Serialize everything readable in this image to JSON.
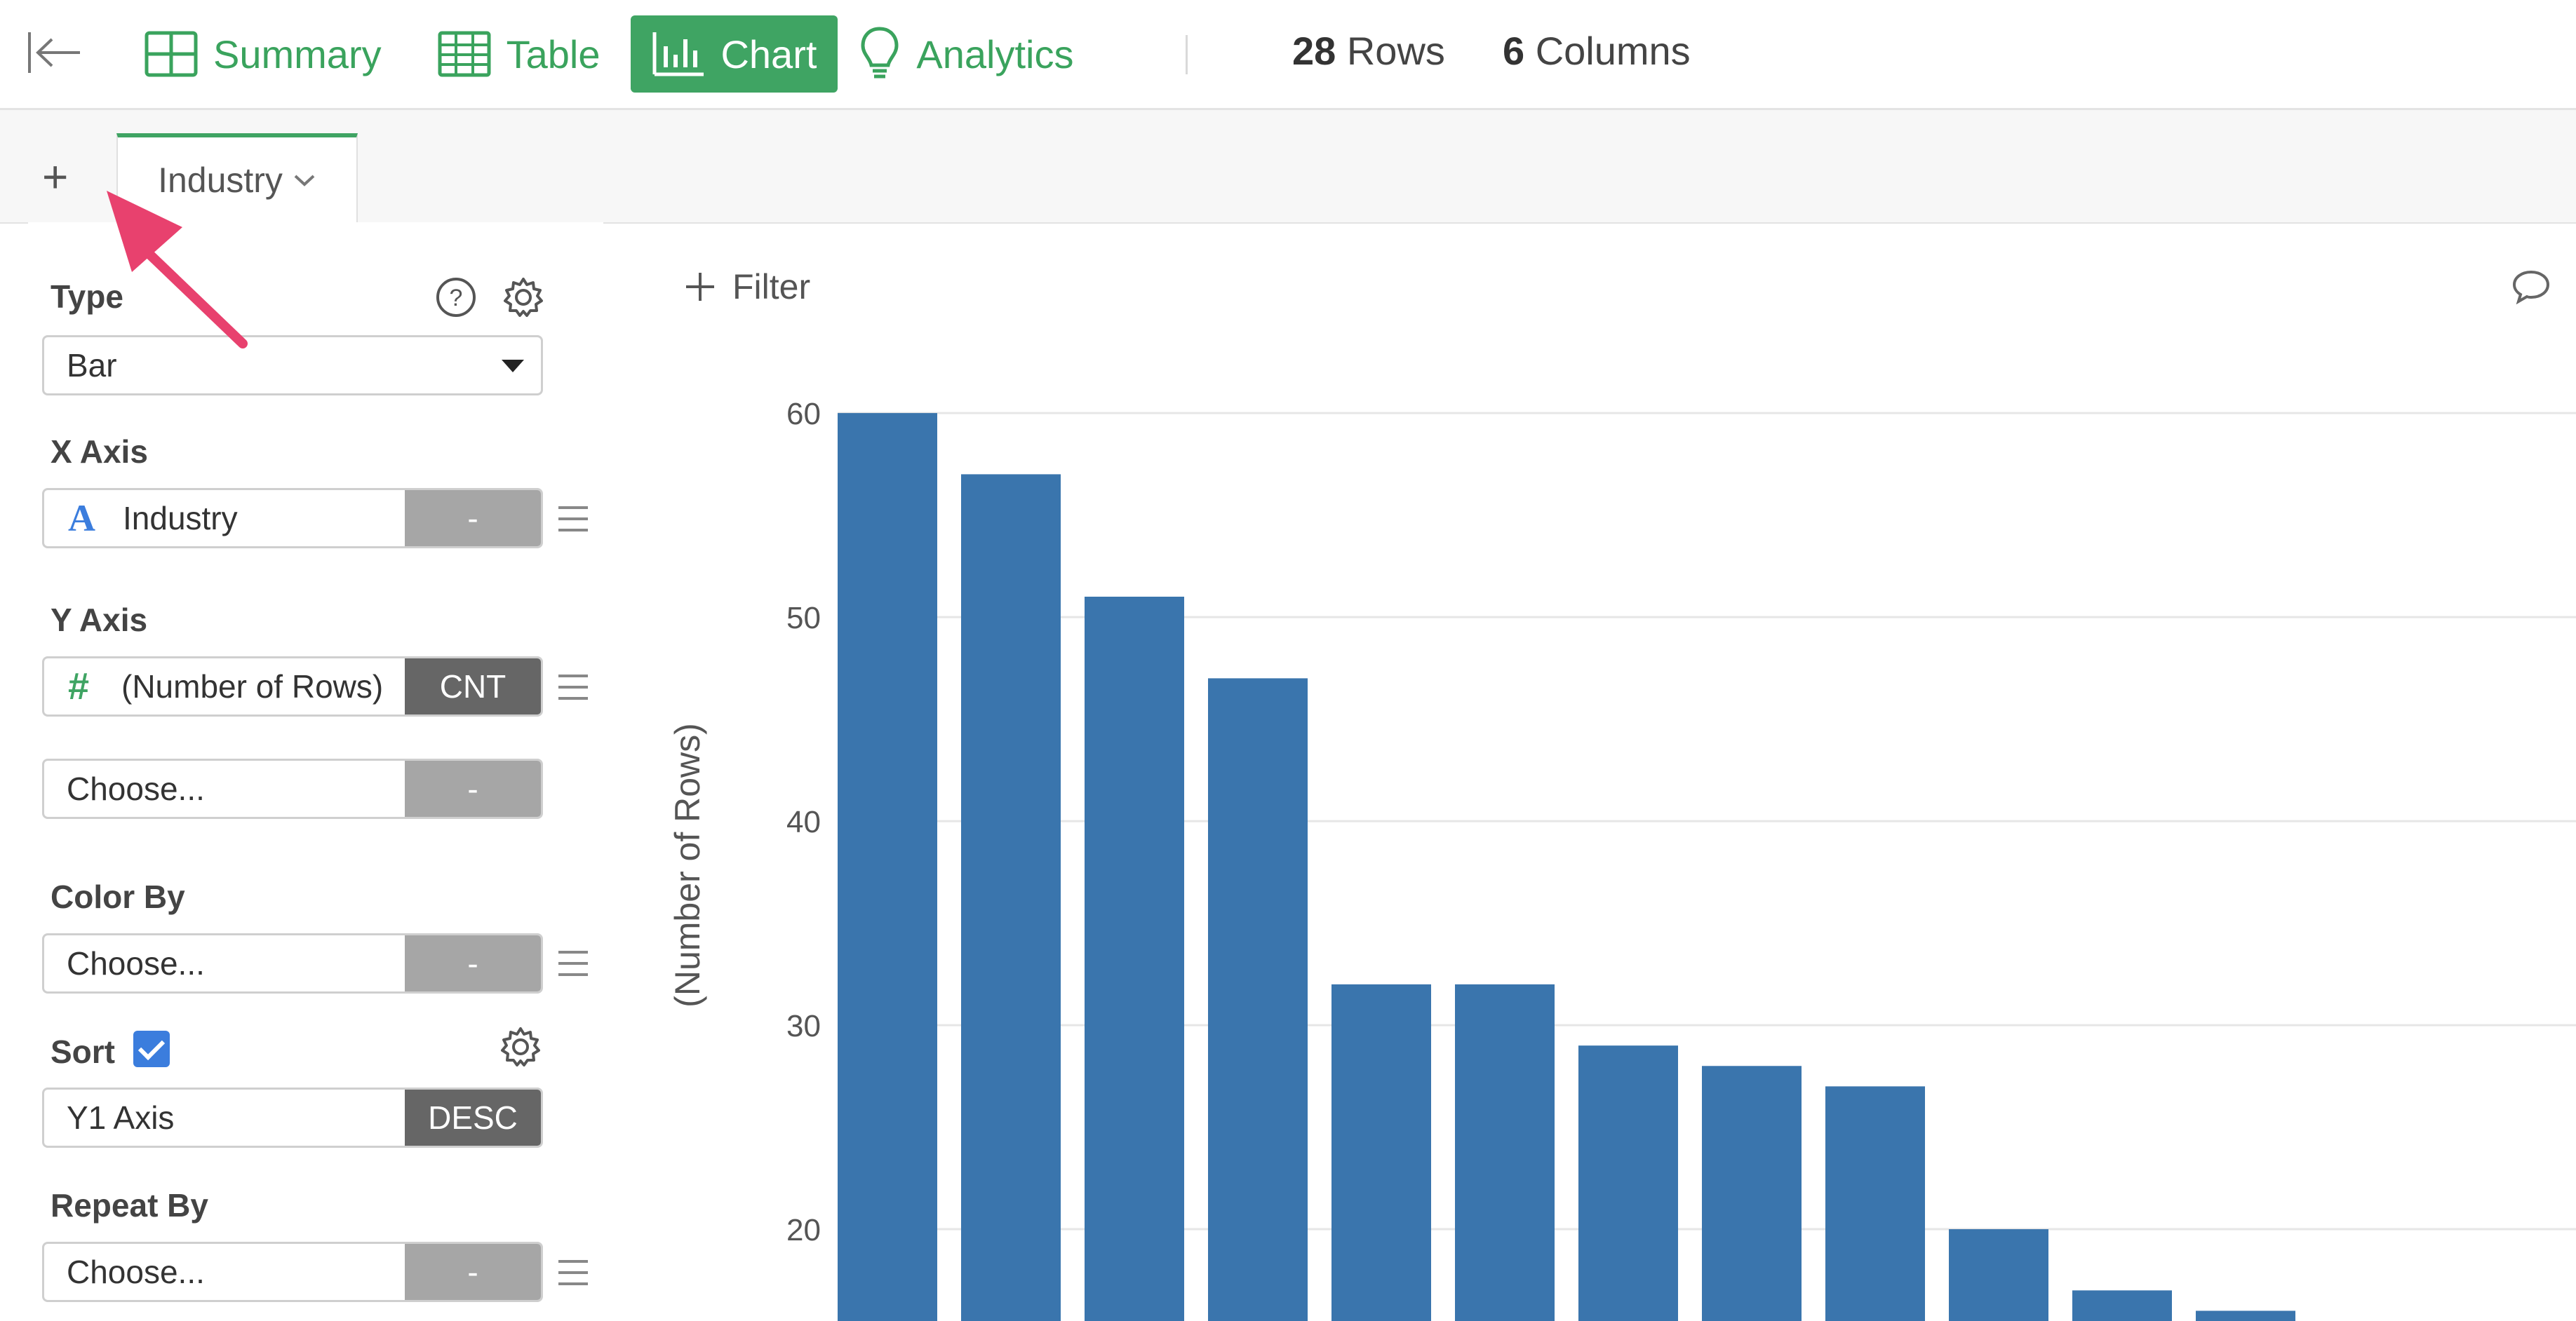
{
  "toolbar": {
    "items": [
      {
        "label": "Summary",
        "icon": "summary-grid-icon",
        "active": false
      },
      {
        "label": "Table",
        "icon": "table-icon",
        "active": false
      },
      {
        "label": "Chart",
        "icon": "bar-chart-icon",
        "active": true
      },
      {
        "label": "Analytics",
        "icon": "lightbulb-icon",
        "active": false
      }
    ],
    "rows_count": "28",
    "rows_label": "Rows",
    "columns_count": "6",
    "columns_label": "Columns"
  },
  "tabs": {
    "add_label": "+",
    "active_tab": "Industry"
  },
  "panel": {
    "type_label": "Type",
    "type_value": "Bar",
    "x_axis_label": "X Axis",
    "x_axis_field": "Industry",
    "x_axis_type_glyph": "A",
    "x_axis_agg": "-",
    "y_axis_label": "Y Axis",
    "y_axis_field": "(Number of Rows)",
    "y_axis_type_glyph": "#",
    "y_axis_agg": "CNT",
    "y2_field": "Choose...",
    "y2_agg": "-",
    "color_by_label": "Color By",
    "color_by_field": "Choose...",
    "color_by_agg": "-",
    "sort_label": "Sort",
    "sort_checked": true,
    "sort_field": "Y1 Axis",
    "sort_order": "DESC",
    "repeat_by_label": "Repeat By",
    "repeat_by_field": "Choose...",
    "repeat_by_agg": "-"
  },
  "filter": {
    "label": "Filter"
  },
  "colors": {
    "accent_green": "#3fa463",
    "bar_blue": "#3a75ad",
    "arrow_pink": "#e8416e"
  },
  "chart_data": {
    "type": "bar",
    "ylabel": "(Number of Rows)",
    "yticks": [
      20,
      30,
      40,
      50,
      60
    ],
    "values": [
      60,
      57,
      51,
      47,
      32,
      32,
      29,
      28,
      27,
      20,
      17,
      16
    ],
    "ylim": [
      15.5,
      61
    ],
    "grid": true
  }
}
